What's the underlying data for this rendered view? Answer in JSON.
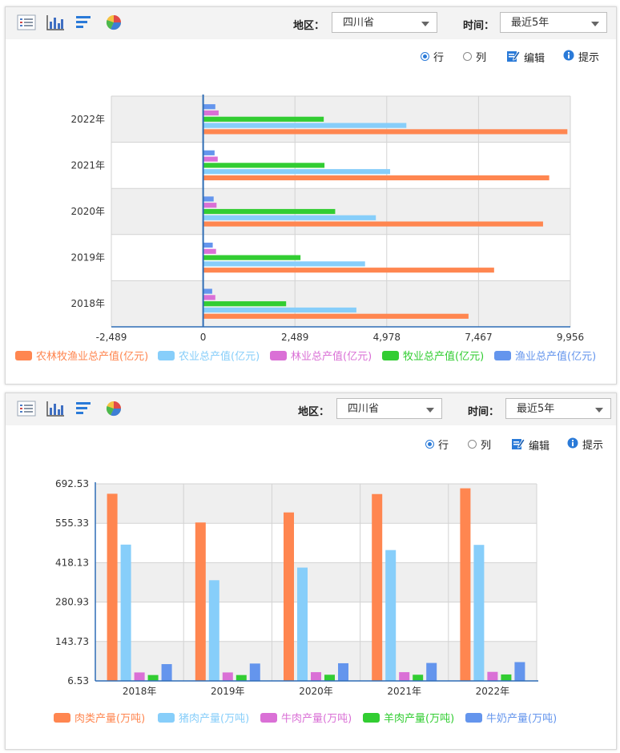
{
  "toolbar": {
    "icons": [
      "list-view-icon",
      "column-chart-icon",
      "bar-chart-icon",
      "pie-chart-icon"
    ],
    "region_label": "地区：",
    "region_value": "四川省",
    "time_label": "时间：",
    "time_value": "最近5年"
  },
  "options": {
    "row_label": "行",
    "col_label": "列",
    "edit_label": "编辑",
    "tip_label": "提示"
  },
  "colors": {
    "orange": "#ff8650",
    "lightblue": "#87cefa",
    "violet": "#da70d6",
    "green": "#32cd32",
    "blue": "#6495ed"
  },
  "chart_data": [
    {
      "type": "bar",
      "orientation": "horizontal",
      "categories": [
        "2018年",
        "2019年",
        "2020年",
        "2021年",
        "2022年"
      ],
      "series": [
        {
          "name": "农林牧渔业总产值(亿元)",
          "color": "#ff8650",
          "values": [
            7195,
            7889,
            9216,
            9383,
            9876
          ]
        },
        {
          "name": "农业总产值(亿元)",
          "color": "#87cefa",
          "values": [
            4155,
            4390,
            4683,
            5070,
            5510
          ]
        },
        {
          "name": "林业总产值(亿元)",
          "color": "#da70d6",
          "values": [
            330,
            350,
            363,
            395,
            420
          ]
        },
        {
          "name": "牧业总产值(亿元)",
          "color": "#32cd32",
          "values": [
            2250,
            2640,
            3580,
            3290,
            3270
          ]
        },
        {
          "name": "渔业总产值(亿元)",
          "color": "#6495ed",
          "values": [
            245,
            260,
            285,
            310,
            330
          ]
        }
      ],
      "x_ticks": [
        "-2,489",
        "0",
        "2,489",
        "4,978",
        "7,467",
        "9,956"
      ],
      "xlim": [
        -2489,
        9956
      ],
      "grid": true,
      "legend_position": "bottom"
    },
    {
      "type": "bar",
      "orientation": "vertical",
      "categories": [
        "2018年",
        "2019年",
        "2020年",
        "2021年",
        "2022年"
      ],
      "series": [
        {
          "name": "肉类产量(万吨)",
          "color": "#ff8650",
          "values": [
            658,
            558,
            593,
            657,
            677
          ]
        },
        {
          "name": "猪肉产量(万吨)",
          "color": "#87cefa",
          "values": [
            481,
            357,
            401,
            462,
            480
          ]
        },
        {
          "name": "牛肉产量(万吨)",
          "color": "#da70d6",
          "values": [
            36,
            36,
            37,
            37,
            38
          ]
        },
        {
          "name": "羊肉产量(万吨)",
          "color": "#32cd32",
          "values": [
            27,
            27,
            28,
            28,
            29
          ]
        },
        {
          "name": "牛奶产量(万吨)",
          "color": "#6495ed",
          "values": [
            65,
            67,
            68,
            69,
            72
          ]
        }
      ],
      "y_ticks": [
        "692.53",
        "555.33",
        "418.13",
        "280.93",
        "143.73",
        "6.53"
      ],
      "ylim": [
        6.53,
        692.53
      ],
      "grid": true,
      "legend_position": "bottom"
    }
  ]
}
